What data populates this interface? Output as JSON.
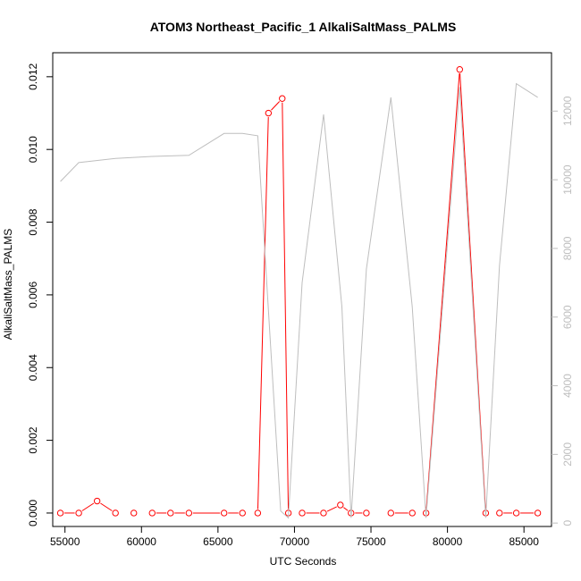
{
  "chart_data": {
    "type": "line",
    "title": "ATOM3 Northeast_Pacific_1 AlkaliSaltMass_PALMS",
    "xlabel": "UTC Seconds",
    "ylabel": "AlkaliSaltMass_PALMS",
    "xlim": [
      54200,
      86800
    ],
    "ylim": [
      -0.00037,
      0.01266
    ],
    "y2lim": [
      -100,
      13700
    ],
    "x_ticks": [
      55000,
      60000,
      65000,
      70000,
      75000,
      80000,
      85000
    ],
    "x_tick_labels": [
      "55000",
      "60000",
      "65000",
      "70000",
      "75000",
      "80000",
      "85000"
    ],
    "y_ticks": [
      0,
      0.002,
      0.004,
      0.006,
      0.008,
      0.01,
      0.012
    ],
    "y_tick_labels": [
      "0.000",
      "0.002",
      "0.004",
      "0.006",
      "0.008",
      "0.010",
      "0.012"
    ],
    "y2_ticks": [
      0,
      2000,
      4000,
      6000,
      8000,
      10000,
      12000
    ],
    "y2_tick_labels": [
      "0",
      "2000",
      "4000",
      "6000",
      "8000",
      "10000",
      "12000"
    ],
    "grid": false,
    "series": [
      {
        "axis": "left",
        "color": "#ff0000",
        "markers": "open-circle",
        "x": [
          54700,
          55900,
          57100,
          58300,
          59500,
          60700,
          61900,
          63100,
          65400,
          66600,
          67600,
          68300,
          69200,
          69600,
          70500,
          71900,
          73000,
          73700,
          74700,
          76300,
          77700,
          78600,
          80800,
          82500,
          83400,
          84500,
          85900
        ],
        "y": [
          0.0,
          0.0,
          0.00033,
          0.0,
          0.0,
          0.0,
          0.0,
          0.0,
          0.0,
          0.0,
          0.0,
          0.011,
          0.0114,
          0.0,
          0.0,
          0.0,
          0.00022,
          0.0,
          0.0,
          0.0,
          0.0,
          0.0,
          0.0122,
          0.0,
          0.0,
          0.0,
          0.0
        ],
        "segments": [
          [
            0,
            1
          ],
          [
            1,
            2
          ],
          [
            2,
            3
          ],
          [
            5,
            6
          ],
          [
            6,
            7
          ],
          [
            7,
            8
          ],
          [
            8,
            9
          ],
          [
            10,
            11
          ],
          [
            11,
            12
          ],
          [
            12,
            13
          ],
          [
            14,
            15
          ],
          [
            15,
            16
          ],
          [
            16,
            17
          ],
          [
            17,
            18
          ],
          [
            19,
            20
          ],
          [
            21,
            22
          ],
          [
            22,
            23
          ],
          [
            24,
            25
          ],
          [
            25,
            26
          ]
        ]
      },
      {
        "axis": "right",
        "color": "#bebebe",
        "markers": "none",
        "x": [
          54700,
          55900,
          58300,
          60700,
          63100,
          65400,
          66600,
          67600,
          68300,
          69100,
          69600,
          70500,
          71900,
          73100,
          73700,
          74700,
          76300,
          77700,
          78600,
          80800,
          82500,
          83400,
          84500,
          85900
        ],
        "y": [
          9950,
          10500,
          10620,
          10680,
          10710,
          11350,
          11350,
          11280,
          6200,
          350,
          150,
          7000,
          11900,
          6300,
          150,
          7400,
          12400,
          6300,
          150,
          12700,
          150,
          7500,
          12800,
          12400
        ]
      }
    ]
  }
}
